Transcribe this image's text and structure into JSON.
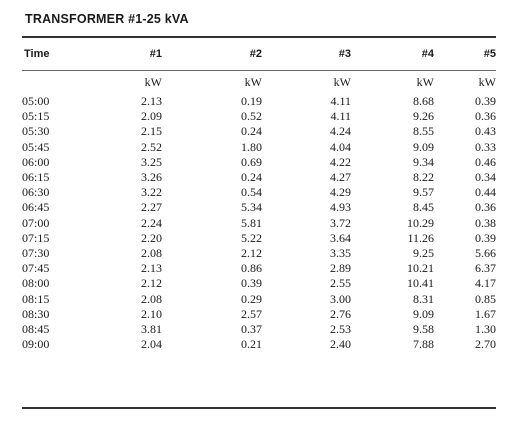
{
  "title": "TRANSFORMER #1-25 kVA",
  "columns": [
    "Time",
    "#1",
    "#2",
    "#3",
    "#4",
    "#5"
  ],
  "units": [
    "",
    "kW",
    "kW",
    "kW",
    "kW",
    "kW"
  ],
  "rows": [
    [
      "05:00",
      "2.13",
      "0.19",
      "4.11",
      "8.68",
      "0.39"
    ],
    [
      "05:15",
      "2.09",
      "0.52",
      "4.11",
      "9.26",
      "0.36"
    ],
    [
      "05:30",
      "2.15",
      "0.24",
      "4.24",
      "8.55",
      "0.43"
    ],
    [
      "05:45",
      "2.52",
      "1.80",
      "4.04",
      "9.09",
      "0.33"
    ],
    [
      "06:00",
      "3.25",
      "0.69",
      "4.22",
      "9.34",
      "0.46"
    ],
    [
      "06:15",
      "3.26",
      "0.24",
      "4.27",
      "8.22",
      "0.34"
    ],
    [
      "06:30",
      "3.22",
      "0.54",
      "4.29",
      "9.57",
      "0.44"
    ],
    [
      "06:45",
      "2.27",
      "5.34",
      "4.93",
      "8.45",
      "0.36"
    ],
    [
      "07:00",
      "2.24",
      "5.81",
      "3.72",
      "10.29",
      "0.38"
    ],
    [
      "07:15",
      "2.20",
      "5.22",
      "3.64",
      "11.26",
      "0.39"
    ],
    [
      "07:30",
      "2.08",
      "2.12",
      "3.35",
      "9.25",
      "5.66"
    ],
    [
      "07:45",
      "2.13",
      "0.86",
      "2.89",
      "10.21",
      "6.37"
    ],
    [
      "08:00",
      "2.12",
      "0.39",
      "2.55",
      "10.41",
      "4.17"
    ],
    [
      "08:15",
      "2.08",
      "0.29",
      "3.00",
      "8.31",
      "0.85"
    ],
    [
      "08:30",
      "2.10",
      "2.57",
      "2.76",
      "9.09",
      "1.67"
    ],
    [
      "08:45",
      "3.81",
      "0.37",
      "2.53",
      "9.58",
      "1.30"
    ],
    [
      "09:00",
      "2.04",
      "0.21",
      "2.40",
      "7.88",
      "2.70"
    ]
  ]
}
